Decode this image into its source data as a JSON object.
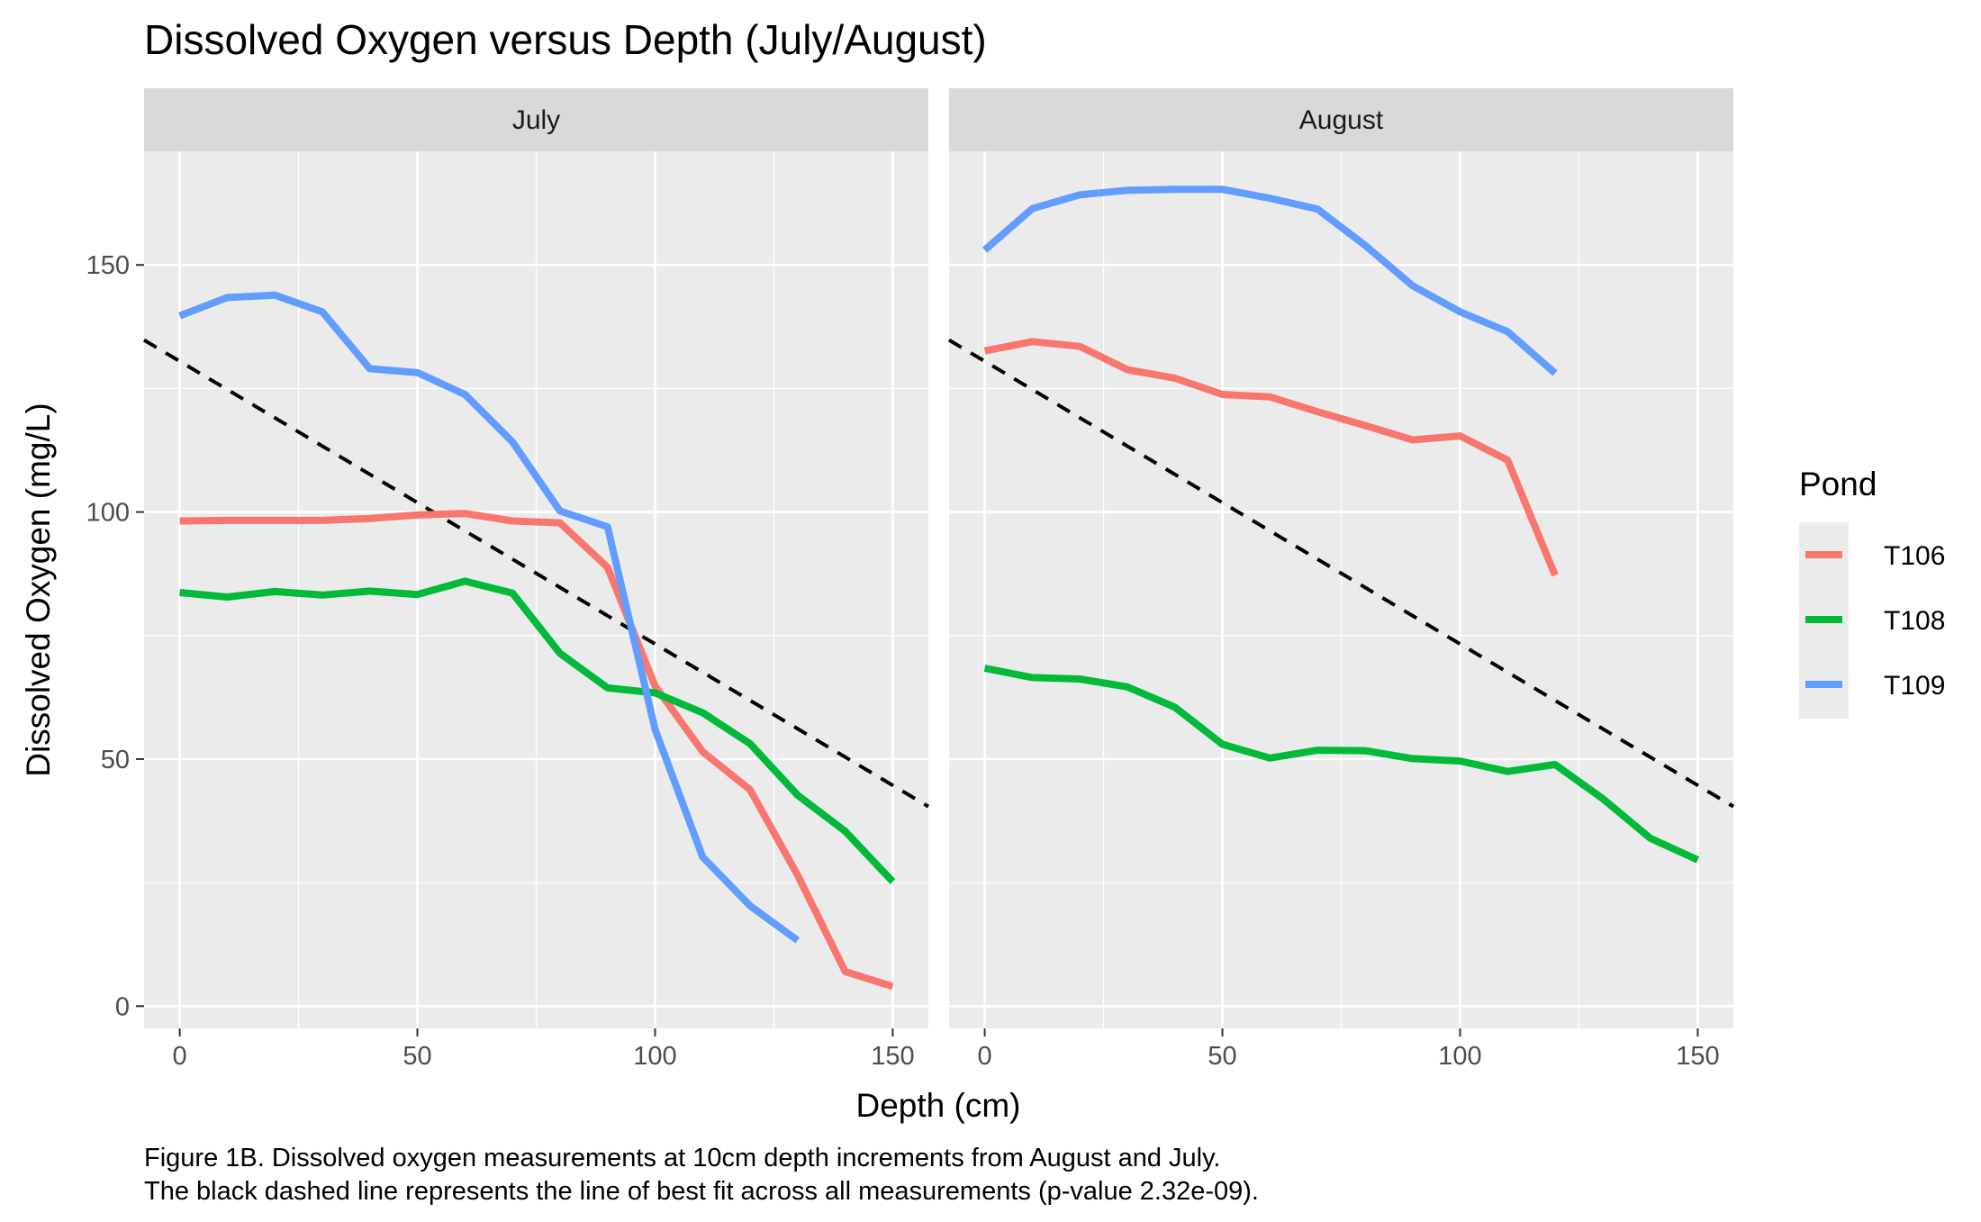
{
  "chart_data": {
    "type": "line",
    "title": "Dissolved Oxygen versus Depth (July/August)",
    "xlabel": "Depth (cm)",
    "ylabel": "Dissolved Oxygen (mg/L)",
    "xlim": [
      -7.5,
      157.5
    ],
    "ylim": [
      -4.5,
      173
    ],
    "x_ticks": [
      0,
      50,
      100,
      150
    ],
    "y_ticks": [
      0,
      50,
      100,
      150
    ],
    "grid": true,
    "legend": {
      "title": "Pond",
      "position": "right",
      "entries": [
        {
          "name": "T106",
          "color": "#F8766D"
        },
        {
          "name": "T108",
          "color": "#00BA38"
        },
        {
          "name": "T109",
          "color": "#619CFF"
        }
      ]
    },
    "panels": [
      {
        "label": "July",
        "series": [
          {
            "name": "T106",
            "color": "#F8766D",
            "x": [
              0,
              10,
              20,
              30,
              40,
              50,
              60,
              70,
              80,
              90,
              100,
              110,
              120,
              130,
              140,
              150
            ],
            "y": [
              98.2,
              98.3,
              98.3,
              98.3,
              98.7,
              99.4,
              99.7,
              98.2,
              97.8,
              88.8,
              64.8,
              51.5,
              43.8,
              26.5,
              7,
              4
            ]
          },
          {
            "name": "T108",
            "color": "#00BA38",
            "x": [
              0,
              10,
              20,
              30,
              40,
              50,
              60,
              70,
              80,
              90,
              100,
              110,
              120,
              130,
              140,
              150
            ],
            "y": [
              83.7,
              82.8,
              83.9,
              83.2,
              84,
              83.3,
              86,
              83.6,
              71.4,
              64.4,
              63.4,
              59.4,
              53.1,
              42.7,
              35.4,
              25.2
            ]
          },
          {
            "name": "T109",
            "color": "#619CFF",
            "x": [
              0,
              10,
              20,
              30,
              40,
              50,
              60,
              70,
              80,
              90,
              100,
              110,
              120,
              130
            ],
            "y": [
              139.7,
              143.4,
              143.9,
              140.5,
              129,
              128.2,
              123.8,
              114.2,
              100.2,
              97,
              56,
              30.2,
              20.3,
              13.3
            ]
          }
        ]
      },
      {
        "label": "August",
        "series": [
          {
            "name": "T106",
            "color": "#F8766D",
            "x": [
              0,
              10,
              20,
              30,
              40,
              50,
              60,
              70,
              80,
              90,
              100,
              110,
              120
            ],
            "y": [
              132.6,
              134.5,
              133.5,
              128.8,
              127.1,
              123.8,
              123.3,
              120.3,
              117.5,
              114.6,
              115.4,
              110.5,
              87.2
            ]
          },
          {
            "name": "T108",
            "color": "#00BA38",
            "x": [
              0,
              10,
              20,
              30,
              40,
              50,
              60,
              70,
              80,
              90,
              100,
              110,
              120,
              130,
              140,
              150
            ],
            "y": [
              68.4,
              66.5,
              66.2,
              64.6,
              60.5,
              53,
              50.2,
              51.8,
              51.7,
              50.1,
              49.6,
              47.5,
              48.9,
              42,
              34,
              29.6
            ]
          },
          {
            "name": "T109",
            "color": "#619CFF",
            "x": [
              0,
              10,
              20,
              30,
              40,
              50,
              60,
              70,
              80,
              90,
              100,
              110,
              120
            ],
            "y": [
              153,
              161.4,
              164.2,
              165.1,
              165.3,
              165.3,
              163.5,
              161.3,
              154,
              145.8,
              140.5,
              136.5,
              128.1
            ]
          }
        ]
      }
    ],
    "fit_line": {
      "style": "dashed",
      "color": "#000000",
      "x": [
        -7.5,
        157.5
      ],
      "y": [
        134.8,
        40.4
      ]
    }
  },
  "caption": {
    "line1": "Figure 1B. Dissolved oxygen measurements at 10cm depth increments from August and July.",
    "line2": "The black dashed line represents the line of best fit across all measurements (p-value 2.32e-09)."
  }
}
